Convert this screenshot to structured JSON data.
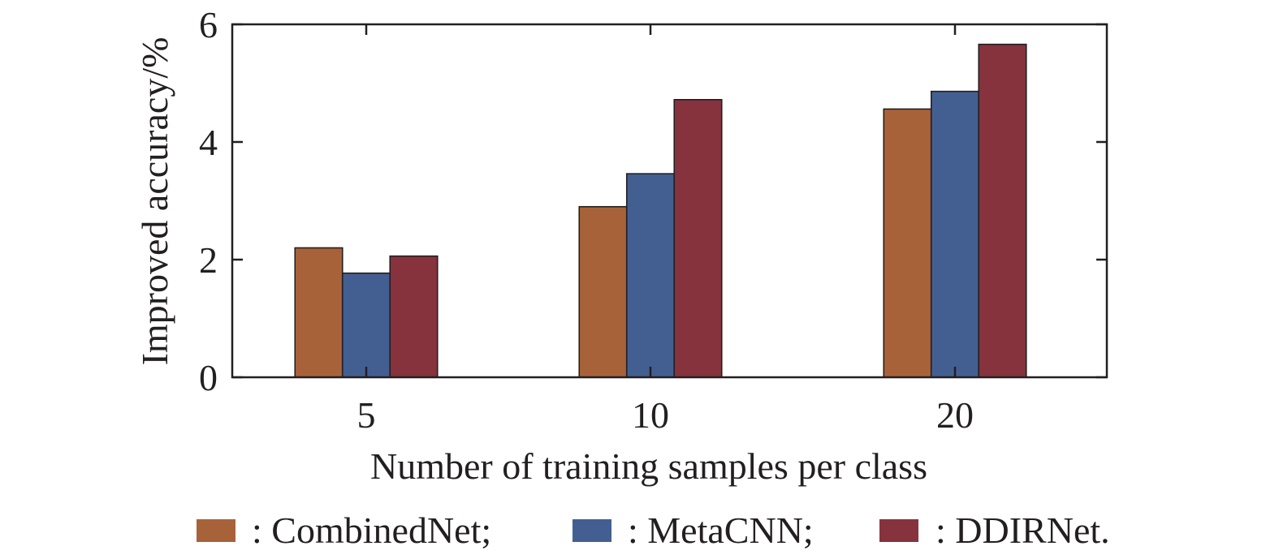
{
  "chart_data": {
    "type": "bar",
    "xlabel": "Number of training samples per class",
    "ylabel": "Improved accuracy/%",
    "categories": [
      "5",
      "10",
      "20"
    ],
    "ylim": [
      0,
      6
    ],
    "yticks": [
      0,
      2,
      4,
      6
    ],
    "grid": false,
    "legend_position": "bottom",
    "series": [
      {
        "name": ": CombinedNet;",
        "color": "#a8623a",
        "values": [
          2.2,
          2.9,
          4.56
        ]
      },
      {
        "name": ": MetaCNN;",
        "color": "#435f92",
        "values": [
          1.77,
          3.46,
          4.86
        ]
      },
      {
        "name": ": DDIRNet.",
        "color": "#86333e",
        "values": [
          2.06,
          4.72,
          5.66
        ]
      }
    ]
  }
}
